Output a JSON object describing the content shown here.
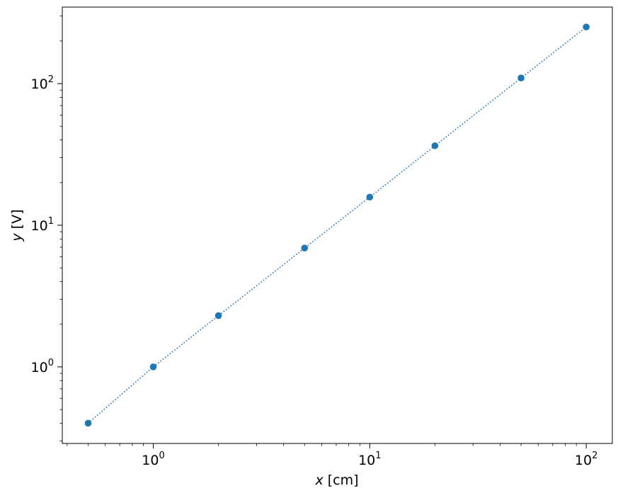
{
  "chart_data": {
    "type": "line",
    "title": "",
    "xlabel": {
      "var": "x",
      "unit": " [cm]"
    },
    "ylabel": {
      "var": "y",
      "unit": " [V]"
    },
    "xscale": "log",
    "yscale": "log",
    "xlim": [
      0.38,
      132
    ],
    "ylim": [
      0.288,
      347
    ],
    "grid": false,
    "x_ticks": [
      {
        "base": "10",
        "exp": "0",
        "value": 1
      },
      {
        "base": "10",
        "exp": "1",
        "value": 10
      },
      {
        "base": "10",
        "exp": "2",
        "value": 100
      }
    ],
    "y_ticks": [
      {
        "base": "10",
        "exp": "0",
        "value": 1
      },
      {
        "base": "10",
        "exp": "1",
        "value": 10
      },
      {
        "base": "10",
        "exp": "2",
        "value": 100
      }
    ],
    "series": [
      {
        "x": [
          0.5,
          1,
          2,
          5,
          10,
          20,
          50,
          100
        ],
        "y": [
          0.4,
          1.0,
          2.3,
          6.9,
          15.8,
          36.4,
          109.6,
          251
        ],
        "color": "#1f77b4",
        "linestyle": "dotted",
        "marker": "circle"
      }
    ]
  }
}
